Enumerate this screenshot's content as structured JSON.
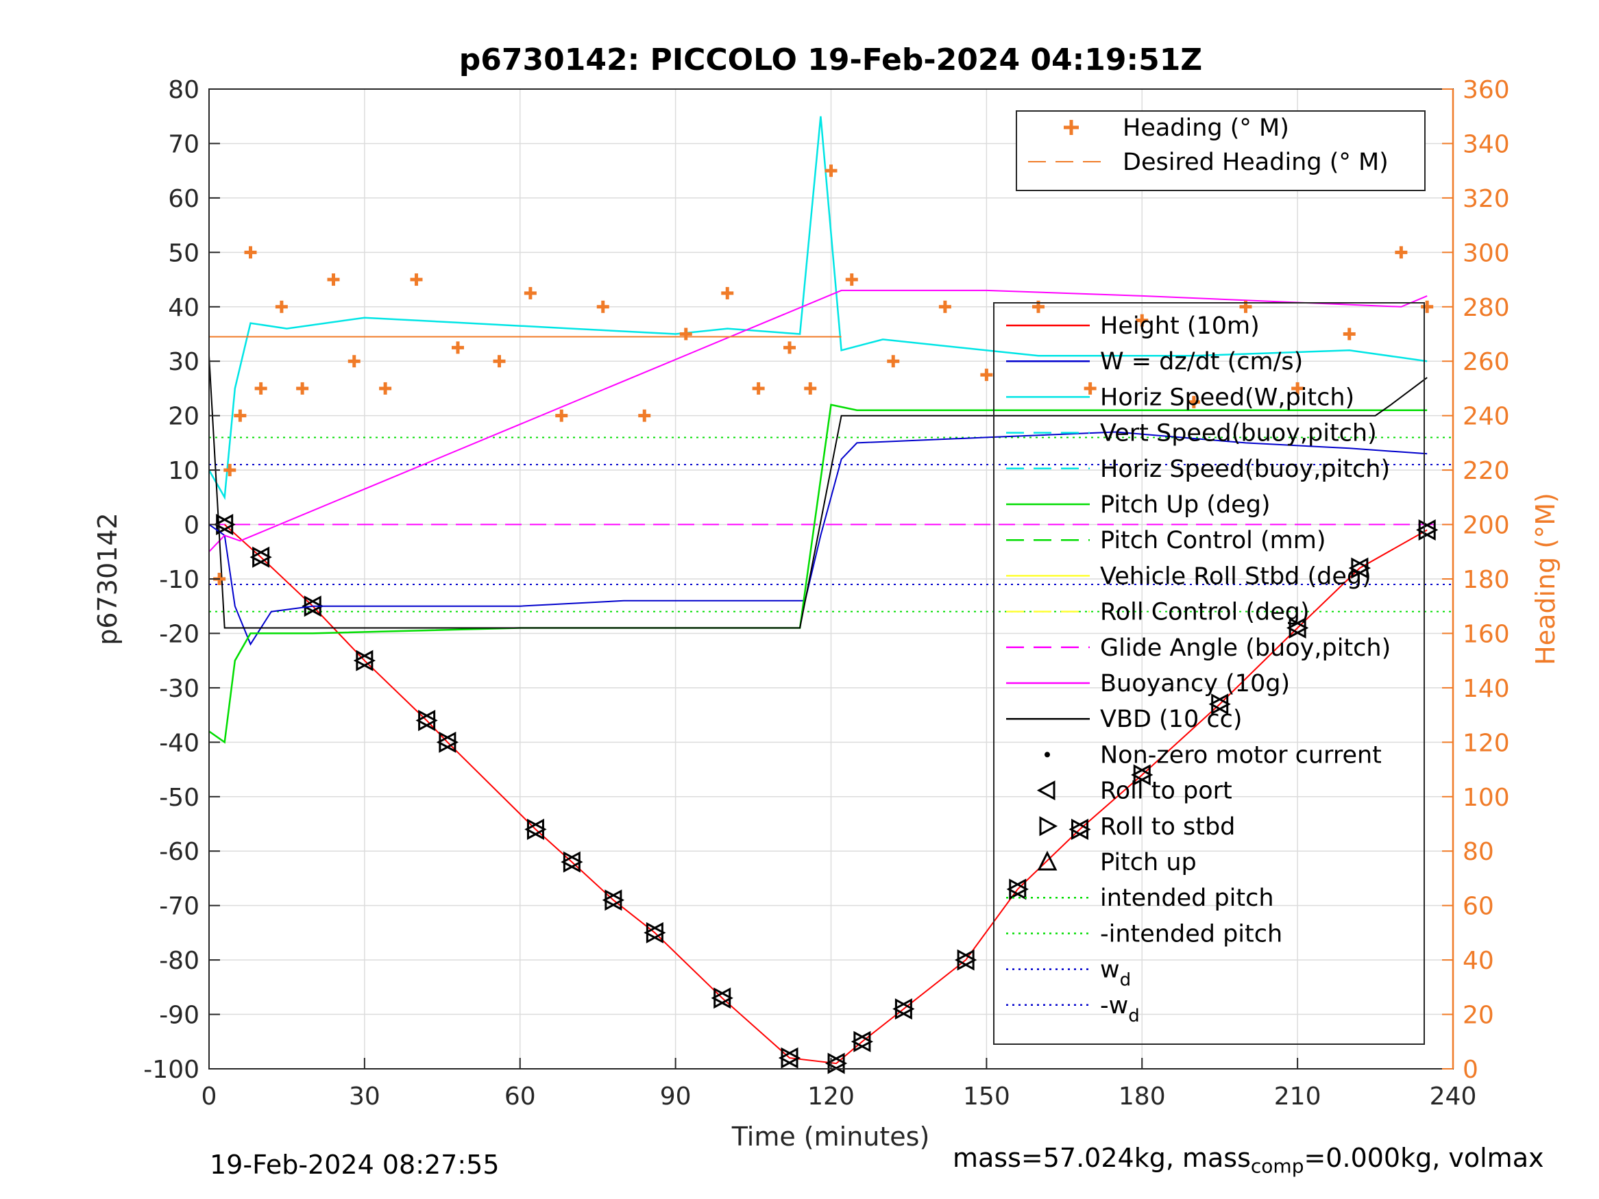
{
  "chart_data": {
    "type": "line",
    "title": "p6730142: PICCOLO 19-Feb-2024 04:19:51Z",
    "xlabel": "Time (minutes)",
    "ylabel": "p6730142",
    "ylabel_right": "Heading (°M)",
    "xlim": [
      0,
      240
    ],
    "ylim": [
      -100,
      80
    ],
    "ylim_right": [
      0,
      360
    ],
    "xticks": [
      "0",
      "30",
      "60",
      "90",
      "120",
      "150",
      "180",
      "210",
      "240"
    ],
    "yticks": [
      "80",
      "70",
      "60",
      "50",
      "40",
      "30",
      "20",
      "10",
      "0",
      "-10",
      "-20",
      "-30",
      "-40",
      "-50",
      "-60",
      "-70",
      "-80",
      "-90",
      "-100"
    ],
    "yticks_right": [
      "360",
      "340",
      "320",
      "300",
      "280",
      "260",
      "240",
      "220",
      "200",
      "180",
      "160",
      "140",
      "120",
      "100",
      "80",
      "60",
      "40",
      "20",
      "0"
    ],
    "grid": true,
    "colors": {
      "height": "#ff0000",
      "w": "#0000cc",
      "horiz_speed": "#00e5e5",
      "pitch": "#00dd00",
      "roll": "#ffff33",
      "glide": "#ff00ff",
      "vbd": "#000000",
      "heading": "#f07b28"
    },
    "legend_top": {
      "placement": "top-right",
      "entries": [
        "Heading (° M)",
        "Desired Heading (° M)"
      ]
    },
    "legend_main": {
      "placement": "right",
      "entries": [
        "Height (10m)",
        "W = dz/dt (cm/s)",
        "Horiz Speed(W,pitch)",
        "Vert Speed(buoy,pitch)",
        "Horiz Speed(buoy,pitch)",
        "Pitch Up (deg)",
        "Pitch Control (mm)",
        "Vehicle Roll Stbd (deg)",
        "Roll Control (deg)",
        "Glide Angle (buoy,pitch)",
        "Buoyancy (10g)",
        "VBD (10 cc)",
        "Non-zero motor current",
        "Roll to port",
        "Roll to stbd",
        "Pitch up",
        "intended pitch",
        "-intended pitch",
        "w",
        "-w"
      ],
      "subscript": "d"
    },
    "series": [
      {
        "name": "Height (10m)",
        "x": [
          3,
          10,
          20,
          30,
          42,
          46,
          63,
          70,
          78,
          86,
          99,
          112,
          121,
          126,
          134,
          146,
          156,
          168,
          180,
          195,
          210,
          222,
          235
        ],
        "y": [
          0,
          -6,
          -15,
          -25,
          -36,
          -40,
          -56,
          -62,
          -69,
          -75,
          -87,
          -98,
          -99,
          -95,
          -89,
          -80,
          -67,
          -56,
          -46,
          -33,
          -19,
          -8,
          -1
        ]
      },
      {
        "name": "W = dz/dt (cm/s)",
        "x": [
          0,
          3,
          5,
          8,
          12,
          20,
          40,
          60,
          80,
          100,
          115,
          118,
          122,
          125,
          150,
          175,
          200,
          220,
          235
        ],
        "y": [
          0,
          -2,
          -15,
          -22,
          -16,
          -15,
          -15,
          -15,
          -14,
          -14,
          -14,
          -2,
          12,
          15,
          16,
          17,
          15,
          14,
          13
        ]
      },
      {
        "name": "Horiz Speed(W,pitch)",
        "x": [
          0,
          3,
          5,
          8,
          15,
          30,
          50,
          70,
          90,
          100,
          114,
          118,
          122,
          130,
          160,
          190,
          220,
          235
        ],
        "y": [
          10,
          5,
          25,
          37,
          36,
          38,
          37,
          36,
          35,
          36,
          35,
          75,
          32,
          34,
          31,
          31,
          32,
          30
        ]
      },
      {
        "name": "Pitch Up (deg)",
        "x": [
          0,
          3,
          5,
          8,
          20,
          60,
          100,
          114,
          120,
          125,
          160,
          200,
          235
        ],
        "y": [
          -38,
          -40,
          -25,
          -20,
          -20,
          -19,
          -19,
          -19,
          22,
          21,
          21,
          21,
          21
        ]
      },
      {
        "name": "Buoyancy (10g)",
        "x": [
          0,
          3,
          6,
          122,
          150,
          180,
          230,
          235
        ],
        "y": [
          -5,
          -2,
          -3,
          43,
          43,
          42,
          40,
          42
        ]
      },
      {
        "name": "VBD (10 cc)",
        "x": [
          0,
          3,
          114,
          122,
          225,
          228,
          235
        ],
        "y": [
          31,
          -19,
          -19,
          20,
          20,
          22,
          27
        ]
      },
      {
        "name": "Heading (° M)",
        "axis": "right",
        "x": [
          2,
          4,
          6,
          8,
          10,
          14,
          18,
          24,
          28,
          34,
          40,
          48,
          56,
          62,
          68,
          76,
          84,
          92,
          100,
          106,
          112,
          116,
          120,
          124,
          132,
          142,
          150,
          160,
          170,
          180,
          190,
          200,
          210,
          220,
          230,
          235
        ],
        "y": [
          180,
          220,
          240,
          300,
          250,
          280,
          250,
          290,
          260,
          250,
          290,
          265,
          260,
          285,
          240,
          280,
          240,
          270,
          285,
          250,
          265,
          250,
          330,
          290,
          260,
          280,
          255,
          280,
          250,
          275,
          245,
          280,
          250,
          270,
          300,
          280
        ]
      },
      {
        "name": "Desired Heading (° M)",
        "axis": "right",
        "x": [
          0,
          122
        ],
        "y": [
          269,
          269
        ]
      }
    ],
    "ref_lines": {
      "intended_pitch": 16,
      "minus_intended_pitch": -16,
      "w_d": 11,
      "minus_w_d": -11
    }
  },
  "footer": {
    "timestamp": "19-Feb-2024 08:27:55",
    "mass_prefix": "mass=57.024kg, mass",
    "mass_sub": "comp",
    "mass_suffix": "=0.000kg, volmax"
  }
}
